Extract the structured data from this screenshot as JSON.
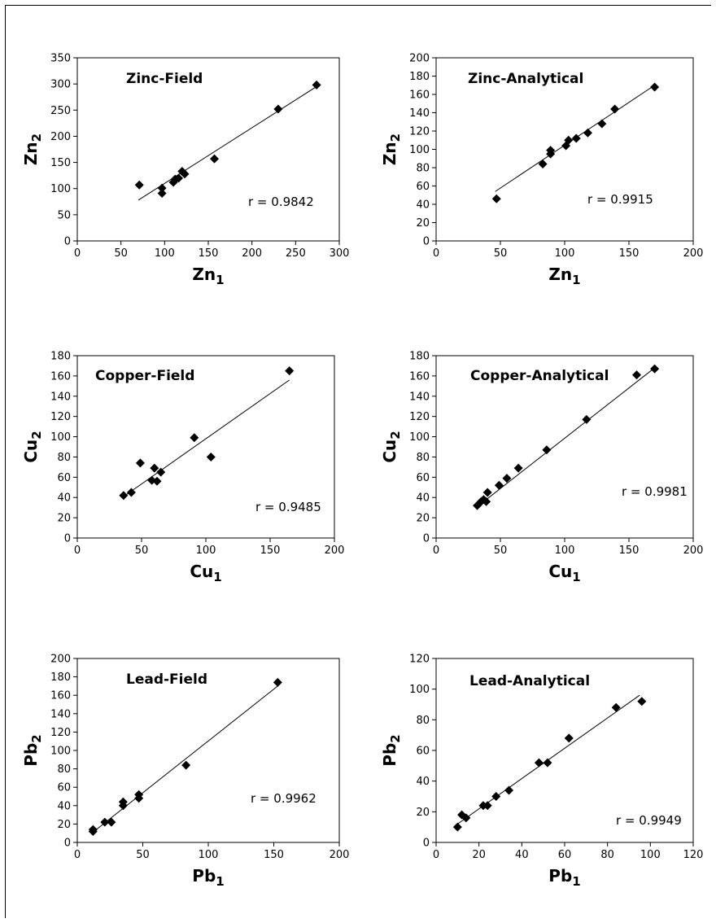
{
  "chart_data": [
    {
      "type": "scatter",
      "title": "Zinc-Field",
      "xlabel": "Zn",
      "xlabel_sub": "1",
      "ylabel": "Zn",
      "ylabel_sub": "2",
      "xlim": [
        0,
        300
      ],
      "ylim": [
        0,
        350
      ],
      "xticks": [
        0,
        50,
        100,
        150,
        200,
        250,
        300
      ],
      "yticks": [
        0,
        50,
        100,
        150,
        200,
        250,
        300,
        350
      ],
      "annotation": "r  = 0.9842",
      "points": [
        [
          71,
          107
        ],
        [
          97,
          101
        ],
        [
          97,
          91
        ],
        [
          110,
          112
        ],
        [
          112,
          118
        ],
        [
          116,
          120
        ],
        [
          120,
          133
        ],
        [
          123,
          128
        ],
        [
          157,
          157
        ],
        [
          230,
          252
        ],
        [
          274,
          298
        ]
      ],
      "trendline": [
        [
          70,
          78
        ],
        [
          274,
          295
        ]
      ]
    },
    {
      "type": "scatter",
      "title": "Zinc-Analytical",
      "xlabel": "Zn",
      "xlabel_sub": "1",
      "ylabel": "Zn",
      "ylabel_sub": "2",
      "xlim": [
        0,
        200
      ],
      "ylim": [
        0,
        200
      ],
      "xticks": [
        0,
        50,
        100,
        150,
        200
      ],
      "yticks": [
        0,
        20,
        40,
        60,
        80,
        100,
        120,
        140,
        160,
        180,
        200
      ],
      "annotation": "r  = 0.9915",
      "points": [
        [
          47,
          46
        ],
        [
          83,
          84
        ],
        [
          89,
          99
        ],
        [
          89,
          95
        ],
        [
          101,
          104
        ],
        [
          103,
          110
        ],
        [
          109,
          112
        ],
        [
          118,
          118
        ],
        [
          129,
          128
        ],
        [
          139,
          144
        ],
        [
          170,
          168
        ]
      ],
      "trendline": [
        [
          46,
          54
        ],
        [
          170,
          170
        ]
      ]
    },
    {
      "type": "scatter",
      "title": "Copper-Field",
      "xlabel": "Cu",
      "xlabel_sub": "1",
      "ylabel": "Cu",
      "ylabel_sub": "2",
      "xlim": [
        0,
        200
      ],
      "ylim": [
        0,
        180
      ],
      "xticks": [
        0,
        50,
        100,
        150,
        200
      ],
      "yticks": [
        0,
        20,
        40,
        60,
        80,
        100,
        120,
        140,
        160,
        180
      ],
      "annotation": "r  = 0.9485",
      "points": [
        [
          36,
          42
        ],
        [
          42,
          45
        ],
        [
          49,
          74
        ],
        [
          58,
          57
        ],
        [
          60,
          69
        ],
        [
          62,
          56
        ],
        [
          65,
          65
        ],
        [
          91,
          99
        ],
        [
          104,
          80
        ],
        [
          165,
          165
        ]
      ],
      "trendline": [
        [
          35,
          40
        ],
        [
          165,
          156
        ]
      ]
    },
    {
      "type": "scatter",
      "title": "Copper-Analytical",
      "xlabel": "Cu",
      "xlabel_sub": "1",
      "ylabel": "Cu",
      "ylabel_sub": "2",
      "xlim": [
        0,
        200
      ],
      "ylim": [
        0,
        180
      ],
      "xticks": [
        0,
        50,
        100,
        150,
        200
      ],
      "yticks": [
        0,
        20,
        40,
        60,
        80,
        100,
        120,
        140,
        160,
        180
      ],
      "annotation": "r  = 0.9981",
      "points": [
        [
          32,
          32
        ],
        [
          35,
          36
        ],
        [
          37,
          38
        ],
        [
          39,
          36
        ],
        [
          40,
          45
        ],
        [
          49,
          52
        ],
        [
          55,
          59
        ],
        [
          64,
          69
        ],
        [
          86,
          87
        ],
        [
          117,
          117
        ],
        [
          156,
          161
        ],
        [
          170,
          167
        ]
      ],
      "trendline": [
        [
          32,
          31
        ],
        [
          170,
          168
        ]
      ]
    },
    {
      "type": "scatter",
      "title": "Lead-Field",
      "xlabel": "Pb",
      "xlabel_sub": "1",
      "ylabel": "Pb",
      "ylabel_sub": "2",
      "xlim": [
        0,
        200
      ],
      "ylim": [
        0,
        200
      ],
      "xticks": [
        0,
        50,
        100,
        150,
        200
      ],
      "yticks": [
        0,
        20,
        40,
        60,
        80,
        100,
        120,
        140,
        160,
        180,
        200
      ],
      "annotation": "r  = 0.9962",
      "points": [
        [
          12,
          12
        ],
        [
          12,
          14
        ],
        [
          21,
          22
        ],
        [
          26,
          22
        ],
        [
          35,
          40
        ],
        [
          35,
          44
        ],
        [
          47,
          48
        ],
        [
          47,
          52
        ],
        [
          83,
          84
        ],
        [
          153,
          174
        ]
      ],
      "trendline": [
        [
          11,
          10
        ],
        [
          153,
          170
        ]
      ]
    },
    {
      "type": "scatter",
      "title": "Lead-Analytical",
      "xlabel": "Pb",
      "xlabel_sub": "1",
      "ylabel": "Pb",
      "ylabel_sub": "2",
      "xlim": [
        0,
        120
      ],
      "ylim": [
        0,
        120
      ],
      "xticks": [
        0,
        20,
        40,
        60,
        80,
        100,
        120
      ],
      "yticks": [
        0,
        20,
        40,
        60,
        80,
        100,
        120
      ],
      "annotation": "r  = 0.9949",
      "points": [
        [
          10,
          10
        ],
        [
          12,
          18
        ],
        [
          14,
          16
        ],
        [
          22,
          24
        ],
        [
          24,
          24
        ],
        [
          28,
          30
        ],
        [
          34,
          34
        ],
        [
          48,
          52
        ],
        [
          52,
          52
        ],
        [
          62,
          68
        ],
        [
          84,
          88
        ],
        [
          96,
          92
        ]
      ],
      "trendline": [
        [
          10,
          12
        ],
        [
          95,
          96
        ]
      ]
    }
  ]
}
